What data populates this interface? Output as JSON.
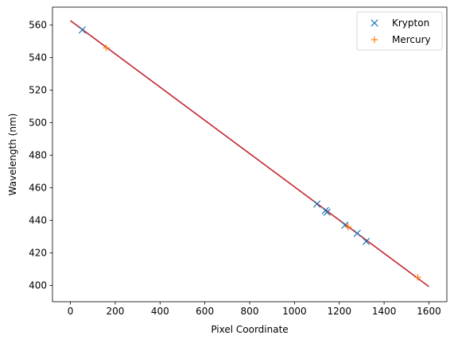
{
  "chart_data": {
    "type": "scatter",
    "xlabel": "Pixel Coordinate",
    "ylabel": "Wavelength (nm)",
    "xlim": [
      -80,
      1680
    ],
    "ylim": [
      390,
      571
    ],
    "xticks": [
      0,
      200,
      400,
      600,
      800,
      1000,
      1200,
      1400,
      1600
    ],
    "yticks": [
      400,
      420,
      440,
      460,
      480,
      500,
      520,
      540,
      560
    ],
    "grid": false,
    "legend_position": "top-right",
    "series": [
      {
        "name": "Krypton",
        "marker": "x",
        "color": "#1f77b4",
        "points": [
          [
            53,
            557
          ],
          [
            1100,
            450
          ],
          [
            1138,
            446
          ],
          [
            1145,
            445
          ],
          [
            1225,
            437
          ],
          [
            1280,
            432
          ],
          [
            1320,
            427
          ]
        ]
      },
      {
        "name": "Mercury",
        "marker": "+",
        "color": "#ff7f0e",
        "points": [
          [
            160,
            546
          ],
          [
            1240,
            436
          ],
          [
            1550,
            405
          ]
        ]
      }
    ],
    "fit_lines": [
      {
        "color": "#1f77b4",
        "x": [
          0,
          1600
        ],
        "y": [
          562.7,
          399.3
        ]
      },
      {
        "color": "#d62728",
        "x": [
          0,
          1600
        ],
        "y": [
          562.7,
          399.3
        ]
      }
    ]
  }
}
